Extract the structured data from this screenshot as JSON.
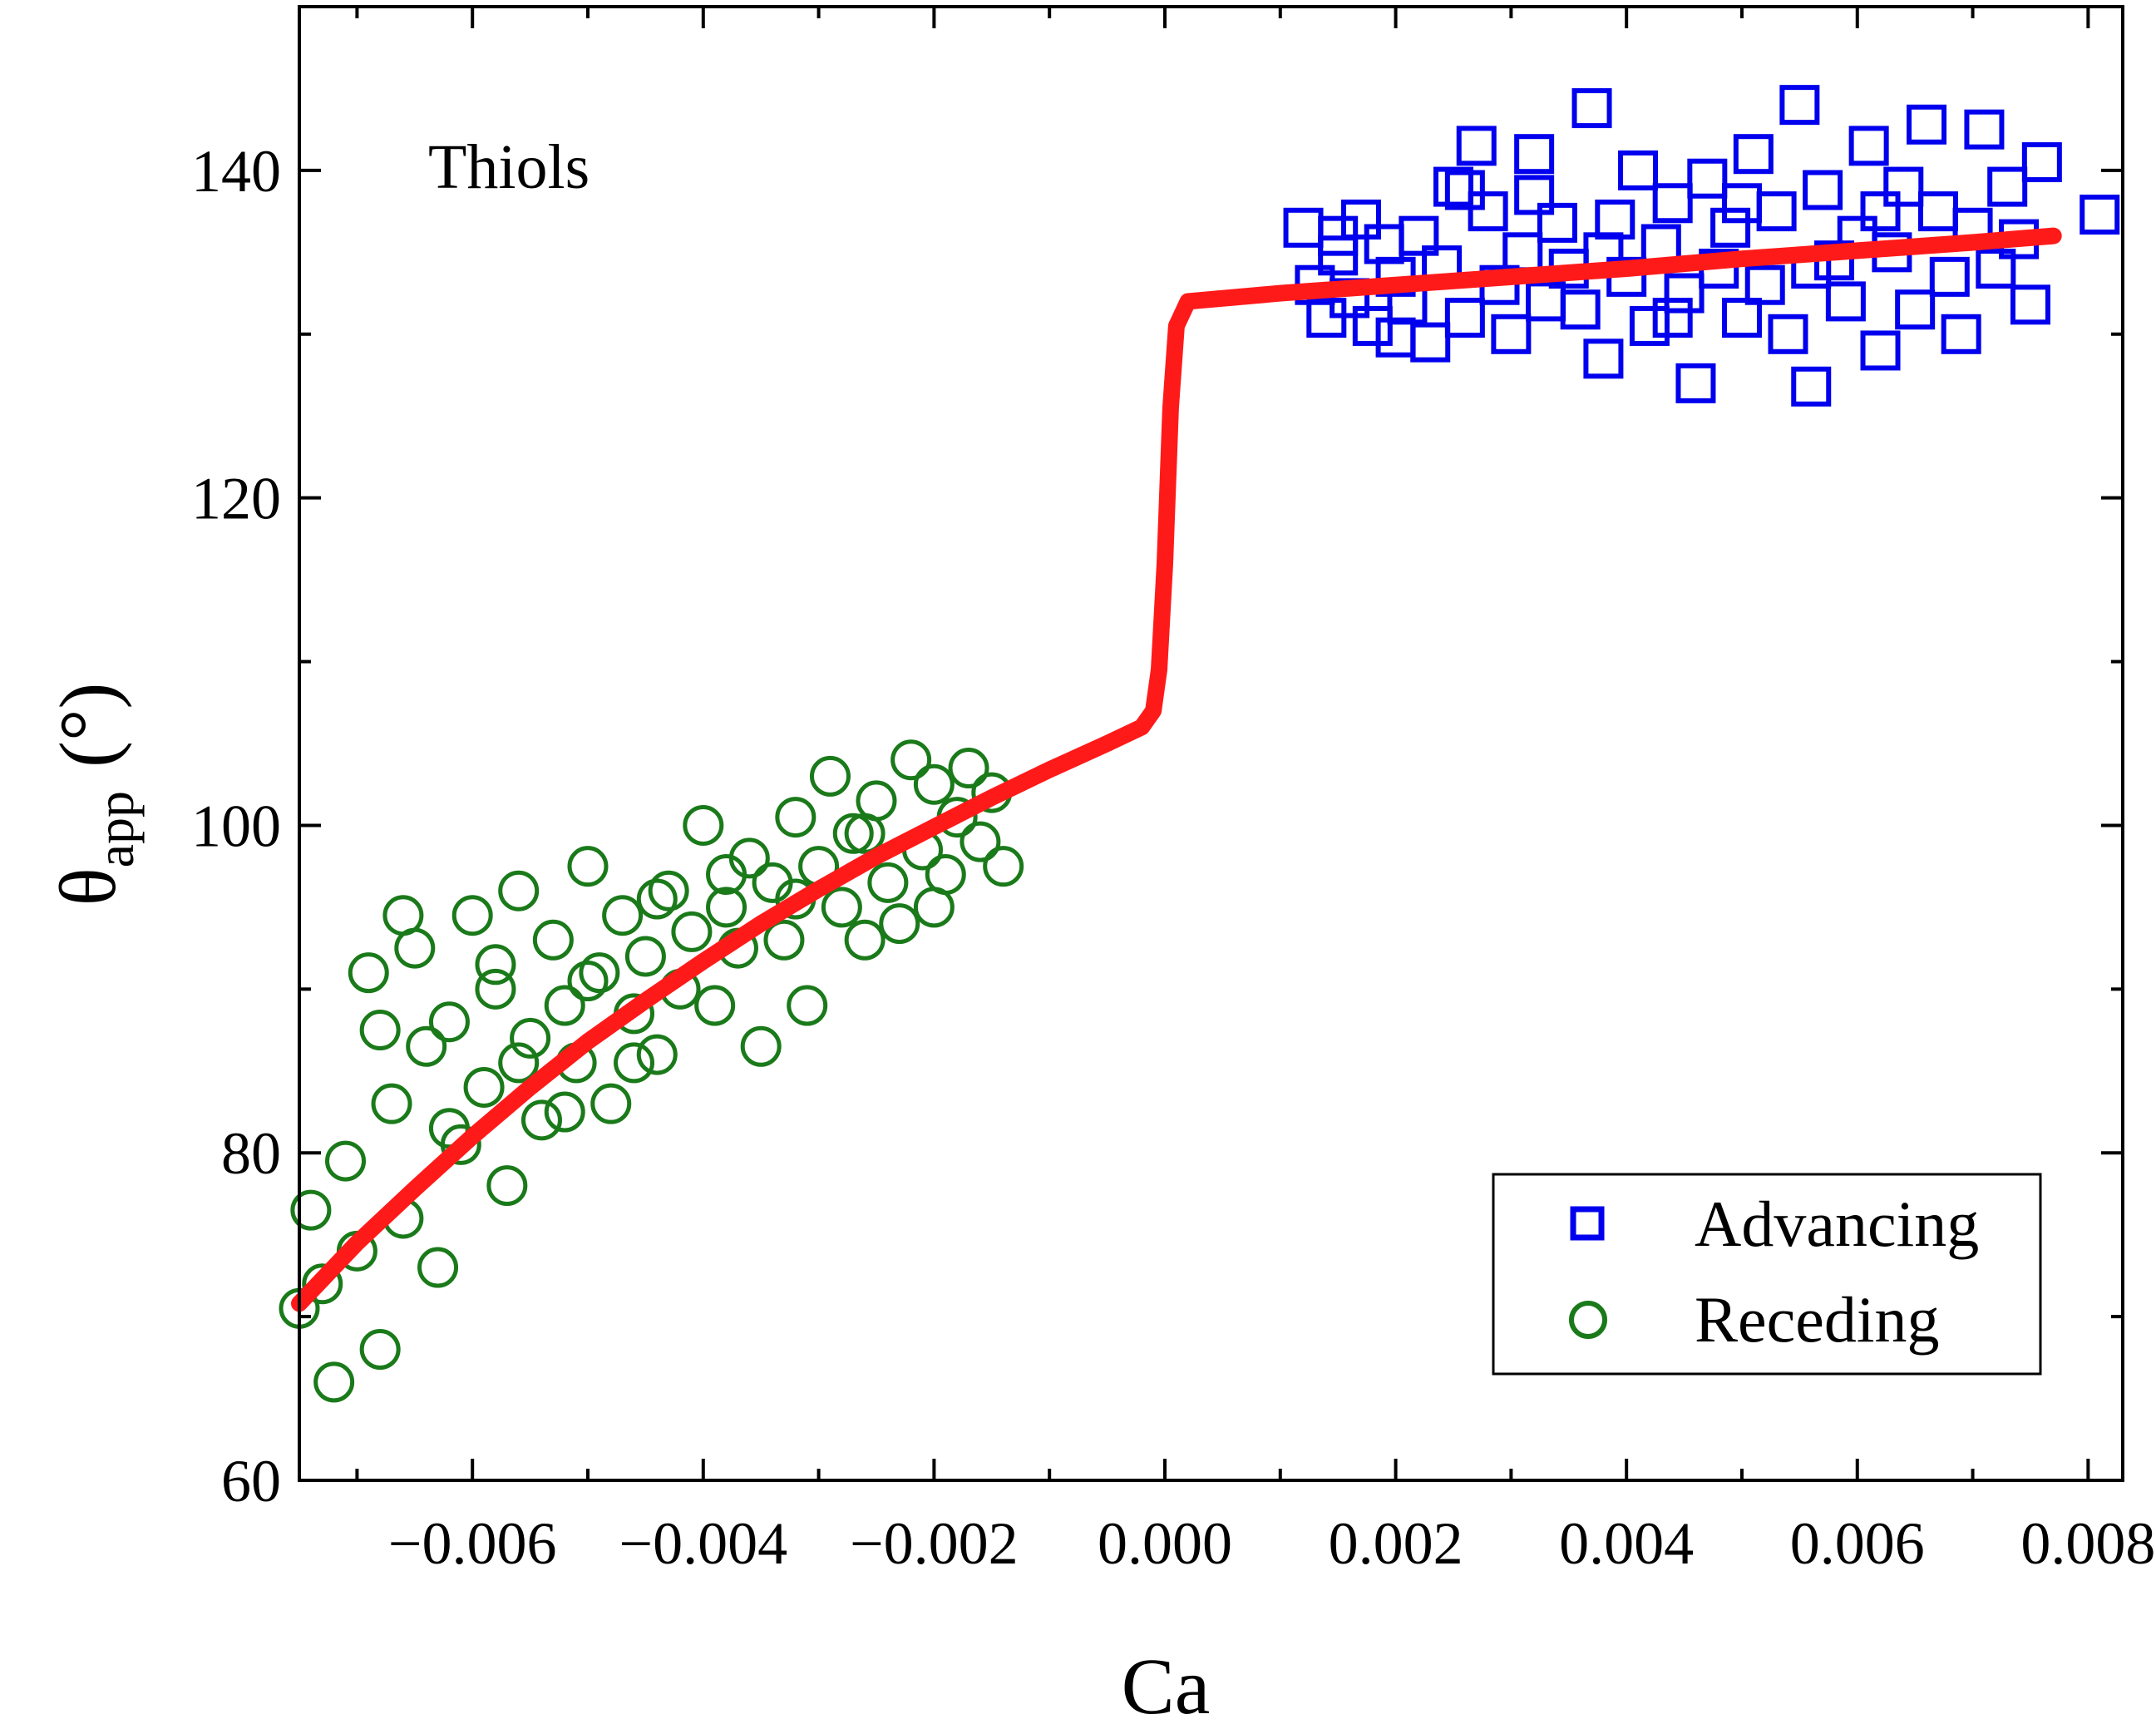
{
  "chart_data": {
    "type": "scatter",
    "annotation": "Thiols",
    "xlabel": "Ca",
    "ylabel": {
      "symbol": "θ",
      "subscript": "app",
      "unit": "(°)"
    },
    "xlim": [
      -0.0075,
      0.0083
    ],
    "ylim": [
      60,
      150
    ],
    "xticks": [
      -0.006,
      -0.004,
      -0.002,
      0.0,
      0.002,
      0.004,
      0.006,
      0.008
    ],
    "xtick_labels": [
      "−0.006",
      "−0.004",
      "−0.002",
      "0.000",
      "0.002",
      "0.004",
      "0.006",
      "0.008"
    ],
    "yticks": [
      60,
      80,
      100,
      120,
      140
    ],
    "ytick_labels": [
      "60",
      "80",
      "100",
      "120",
      "140"
    ],
    "legend": {
      "position": "bottom-right",
      "entries": [
        "Advancing",
        "Receding"
      ]
    },
    "colors": {
      "advancing": "#0000ee",
      "receding": "#1a7a1a",
      "fit": "#ff1a1a"
    },
    "series": [
      {
        "name": "Advancing",
        "marker": "square",
        "points": [
          [
            0.0012,
            136.5
          ],
          [
            0.0013,
            133.0
          ],
          [
            0.0014,
            131.0
          ],
          [
            0.0015,
            134.8
          ],
          [
            0.0016,
            132.2
          ],
          [
            0.0017,
            137.0
          ],
          [
            0.0018,
            130.5
          ],
          [
            0.0019,
            135.5
          ],
          [
            0.002,
            133.5
          ],
          [
            0.0021,
            131.8
          ],
          [
            0.0022,
            136.0
          ],
          [
            0.0023,
            129.5
          ],
          [
            0.0024,
            134.2
          ],
          [
            0.0025,
            139.0
          ],
          [
            0.0026,
            131.0
          ],
          [
            0.0027,
            141.5
          ],
          [
            0.0028,
            137.5
          ],
          [
            0.0029,
            133.0
          ],
          [
            0.003,
            130.0
          ],
          [
            0.0031,
            135.0
          ],
          [
            0.0032,
            138.5
          ],
          [
            0.0033,
            132.0
          ],
          [
            0.0034,
            136.8
          ],
          [
            0.0035,
            134.0
          ],
          [
            0.0036,
            131.5
          ],
          [
            0.0037,
            143.8
          ],
          [
            0.0038,
            128.5
          ],
          [
            0.0039,
            137.0
          ],
          [
            0.004,
            133.5
          ],
          [
            0.0041,
            140.0
          ],
          [
            0.0042,
            130.5
          ],
          [
            0.0043,
            135.5
          ],
          [
            0.0044,
            138.0
          ],
          [
            0.0045,
            132.5
          ],
          [
            0.0046,
            127.0
          ],
          [
            0.0047,
            139.5
          ],
          [
            0.0048,
            134.0
          ],
          [
            0.0049,
            136.5
          ],
          [
            0.005,
            131.0
          ],
          [
            0.0051,
            141.0
          ],
          [
            0.0052,
            133.0
          ],
          [
            0.0053,
            137.5
          ],
          [
            0.0054,
            130.0
          ],
          [
            0.0055,
            144.0
          ],
          [
            0.0056,
            126.8
          ],
          [
            0.0057,
            138.8
          ],
          [
            0.0058,
            134.5
          ],
          [
            0.0059,
            132.0
          ],
          [
            0.006,
            136.0
          ],
          [
            0.0061,
            141.5
          ],
          [
            0.0062,
            129.0
          ],
          [
            0.0063,
            135.0
          ],
          [
            0.0064,
            139.0
          ],
          [
            0.0065,
            131.5
          ],
          [
            0.0066,
            142.8
          ],
          [
            0.0067,
            137.5
          ],
          [
            0.0068,
            133.5
          ],
          [
            0.0069,
            130.0
          ],
          [
            0.007,
            136.5
          ],
          [
            0.0071,
            142.5
          ],
          [
            0.0072,
            134.0
          ],
          [
            0.0073,
            139.0
          ],
          [
            0.0074,
            135.8
          ],
          [
            0.0075,
            131.8
          ],
          [
            0.0076,
            140.5
          ],
          [
            0.0081,
            137.3
          ],
          [
            0.0015,
            136.0
          ],
          [
            0.002,
            129.8
          ],
          [
            0.0026,
            138.8
          ],
          [
            0.0032,
            141.0
          ],
          [
            0.0038,
            135.0
          ],
          [
            0.0044,
            131.0
          ],
          [
            0.005,
            138.0
          ],
          [
            0.0056,
            134.0
          ],
          [
            0.0062,
            137.5
          ]
        ]
      },
      {
        "name": "Receding",
        "marker": "circle",
        "points": [
          [
            -0.0075,
            70.5
          ],
          [
            -0.0074,
            76.5
          ],
          [
            -0.0073,
            72.0
          ],
          [
            -0.0072,
            66.0
          ],
          [
            -0.0071,
            79.5
          ],
          [
            -0.007,
            74.0
          ],
          [
            -0.0069,
            91.0
          ],
          [
            -0.0068,
            68.0
          ],
          [
            -0.0067,
            83.0
          ],
          [
            -0.0066,
            76.0
          ],
          [
            -0.0065,
            92.5
          ],
          [
            -0.0064,
            86.5
          ],
          [
            -0.0063,
            73.0
          ],
          [
            -0.0062,
            88.0
          ],
          [
            -0.0061,
            80.5
          ],
          [
            -0.006,
            94.5
          ],
          [
            -0.0059,
            84.0
          ],
          [
            -0.0058,
            90.0
          ],
          [
            -0.0057,
            78.0
          ],
          [
            -0.0056,
            96.0
          ],
          [
            -0.0055,
            87.0
          ],
          [
            -0.0054,
            82.0
          ],
          [
            -0.0053,
            93.0
          ],
          [
            -0.0052,
            89.0
          ],
          [
            -0.0051,
            85.5
          ],
          [
            -0.005,
            97.5
          ],
          [
            -0.0049,
            91.0
          ],
          [
            -0.0048,
            83.0
          ],
          [
            -0.0047,
            94.5
          ],
          [
            -0.0046,
            88.5
          ],
          [
            -0.0045,
            92.0
          ],
          [
            -0.0044,
            86.0
          ],
          [
            -0.0043,
            96.0
          ],
          [
            -0.0042,
            90.0
          ],
          [
            -0.0041,
            93.5
          ],
          [
            -0.004,
            100.0
          ],
          [
            -0.0039,
            89.0
          ],
          [
            -0.0038,
            95.0
          ],
          [
            -0.0037,
            92.5
          ],
          [
            -0.0036,
            98.0
          ],
          [
            -0.0035,
            86.5
          ],
          [
            -0.0034,
            96.5
          ],
          [
            -0.0033,
            93.0
          ],
          [
            -0.0032,
            100.5
          ],
          [
            -0.0031,
            89.0
          ],
          [
            -0.003,
            97.5
          ],
          [
            -0.0029,
            103.0
          ],
          [
            -0.0028,
            95.0
          ],
          [
            -0.0027,
            99.5
          ],
          [
            -0.0026,
            93.0
          ],
          [
            -0.0025,
            101.5
          ],
          [
            -0.0024,
            96.5
          ],
          [
            -0.0023,
            94.0
          ],
          [
            -0.0022,
            104.0
          ],
          [
            -0.0021,
            98.5
          ],
          [
            -0.002,
            102.5
          ],
          [
            -0.0019,
            97.0
          ],
          [
            -0.0018,
            100.5
          ],
          [
            -0.0017,
            103.5
          ],
          [
            -0.0016,
            99.0
          ],
          [
            -0.0015,
            102.0
          ],
          [
            -0.0014,
            97.5
          ],
          [
            -0.0068,
            87.5
          ],
          [
            -0.0062,
            81.5
          ],
          [
            -0.0056,
            85.5
          ],
          [
            -0.005,
            90.5
          ],
          [
            -0.0044,
            95.5
          ],
          [
            -0.0038,
            97.0
          ],
          [
            -0.0032,
            95.5
          ],
          [
            -0.0026,
            99.5
          ],
          [
            -0.002,
            95.0
          ],
          [
            -0.0066,
            94.5
          ],
          [
            -0.0058,
            91.5
          ],
          [
            -0.0052,
            82.5
          ],
          [
            -0.0046,
            85.5
          ]
        ]
      },
      {
        "name": "Model fit",
        "marker": "line",
        "points": [
          [
            -0.0075,
            70.8
          ],
          [
            -0.007,
            74.5
          ],
          [
            -0.0065,
            77.8
          ],
          [
            -0.006,
            81.0
          ],
          [
            -0.0055,
            84.0
          ],
          [
            -0.005,
            86.8
          ],
          [
            -0.0045,
            89.3
          ],
          [
            -0.004,
            91.7
          ],
          [
            -0.0035,
            94.0
          ],
          [
            -0.003,
            96.1
          ],
          [
            -0.0025,
            98.1
          ],
          [
            -0.002,
            99.9
          ],
          [
            -0.0015,
            101.7
          ],
          [
            -0.001,
            103.4
          ],
          [
            -0.0005,
            105.0
          ],
          [
            -0.0002,
            106.0
          ],
          [
            -0.0001,
            107.0
          ],
          [
            -5e-05,
            109.5
          ],
          [
            0.0,
            116.0
          ],
          [
            5e-05,
            125.5
          ],
          [
            0.0001,
            130.5
          ],
          [
            0.0002,
            132.0
          ],
          [
            0.001,
            132.5
          ],
          [
            0.002,
            133.0
          ],
          [
            0.003,
            133.5
          ],
          [
            0.004,
            134.0
          ],
          [
            0.005,
            134.6
          ],
          [
            0.006,
            135.1
          ],
          [
            0.007,
            135.6
          ],
          [
            0.0077,
            136.0
          ]
        ]
      }
    ]
  }
}
